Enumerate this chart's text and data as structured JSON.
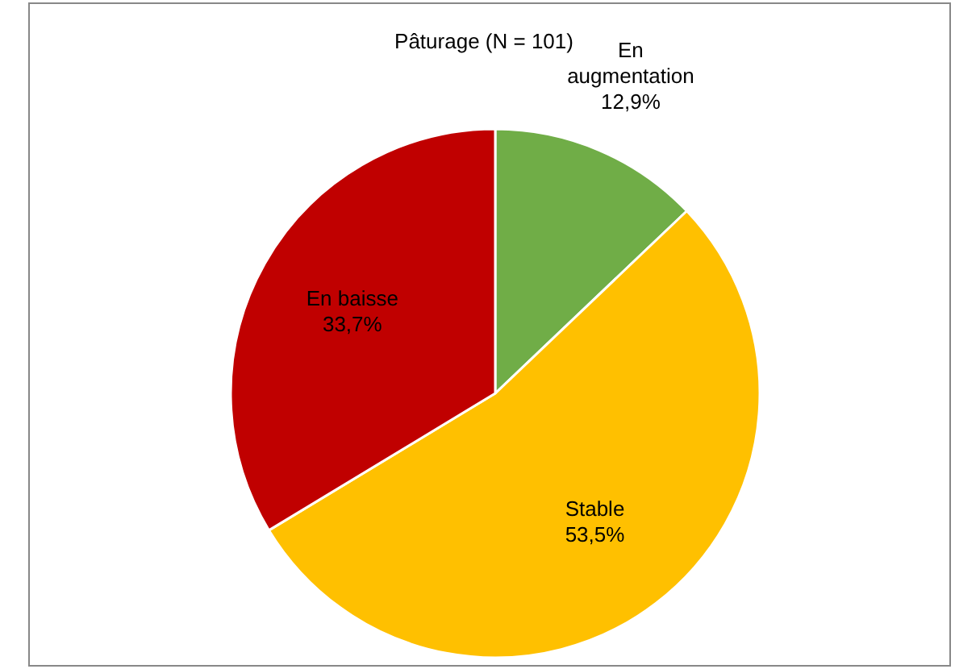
{
  "chart_data": {
    "type": "pie",
    "title": "Pâturage (N = 101)",
    "categories": [
      "En augmentation",
      "Stable",
      "En baisse"
    ],
    "values": [
      12.9,
      53.5,
      33.7
    ],
    "colors": [
      "#70ad47",
      "#ffc000",
      "#c00000"
    ],
    "value_labels": [
      "12,9%",
      "53,5%",
      "33,7%"
    ]
  }
}
